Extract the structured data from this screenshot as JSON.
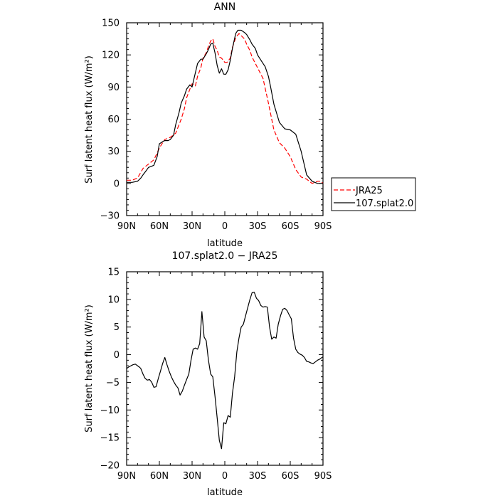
{
  "chart_data": [
    {
      "type": "line",
      "title": "ANN",
      "xlabel": "latitude",
      "ylabel": "Surf latent heat flux (W/m²)",
      "xlim": [
        -90,
        90
      ],
      "ylim": [
        -30,
        150
      ],
      "x_tick_values": [
        -90,
        -60,
        -30,
        0,
        30,
        60,
        90
      ],
      "x_tick_labels": [
        "90N",
        "60N",
        "30N",
        "0",
        "30S",
        "60S",
        "90S"
      ],
      "y_tick_values": [
        -30,
        0,
        30,
        60,
        90,
        120,
        150
      ],
      "y_tick_labels": [
        "−30",
        "0",
        "30",
        "60",
        "90",
        "120",
        "150"
      ],
      "legend_position": "right",
      "series": [
        {
          "name": "JRA25",
          "color": "#ff0000",
          "dash": "dashed",
          "x": [
            -90,
            -85,
            -80,
            -75,
            -70,
            -65,
            -60,
            -57,
            -55,
            -50,
            -45,
            -40,
            -37,
            -35,
            -32,
            -30,
            -27,
            -25,
            -22,
            -20,
            -17,
            -15,
            -13,
            -11,
            -9,
            -7,
            -5,
            -3,
            0,
            2,
            5,
            7,
            10,
            13,
            15,
            18,
            20,
            23,
            25,
            30,
            35,
            40,
            45,
            50,
            55,
            60,
            65,
            70,
            75,
            80,
            85,
            88,
            90
          ],
          "y": [
            3,
            3,
            5,
            14,
            18,
            22,
            33,
            38,
            41,
            43,
            47,
            60,
            70,
            80,
            88,
            93,
            91,
            100,
            108,
            117,
            122,
            128,
            133,
            135,
            128,
            124,
            118,
            117,
            113,
            113,
            117,
            127,
            136,
            140,
            138,
            135,
            130,
            124,
            118,
            108,
            98,
            75,
            50,
            38,
            33,
            25,
            13,
            6,
            4,
            0,
            2,
            2,
            0
          ]
        },
        {
          "name": "107.splat2.0",
          "color": "#000000",
          "dash": "solid",
          "x": [
            -90,
            -85,
            -80,
            -77,
            -75,
            -72,
            -70,
            -67,
            -65,
            -62,
            -60,
            -57,
            -55,
            -52,
            -50,
            -47,
            -45,
            -42,
            -40,
            -37,
            -35,
            -32,
            -30,
            -28,
            -25,
            -22,
            -20,
            -17,
            -15,
            -13,
            -11,
            -9,
            -7,
            -5,
            -3,
            -1,
            1,
            3,
            5,
            7,
            10,
            12,
            15,
            18,
            20,
            23,
            25,
            28,
            30,
            35,
            37,
            40,
            42,
            45,
            50,
            55,
            60,
            65,
            70,
            75,
            80,
            85,
            88,
            90
          ],
          "y": [
            1,
            1,
            2,
            5,
            8,
            12,
            15,
            16,
            17,
            25,
            37,
            39,
            40,
            40,
            41,
            45,
            55,
            66,
            75,
            82,
            88,
            92,
            90,
            99,
            112,
            116,
            116,
            121,
            125,
            130,
            131,
            122,
            110,
            103,
            107,
            102,
            102,
            106,
            115,
            126,
            140,
            143,
            143,
            141,
            139,
            134,
            130,
            126,
            120,
            112,
            109,
            100,
            90,
            74,
            57,
            51,
            50,
            46,
            30,
            8,
            2,
            0,
            0,
            0
          ]
        }
      ]
    },
    {
      "type": "line",
      "title": "107.splat2.0 − JRA25",
      "xlabel": "latitude",
      "ylabel": "Surf latent heat flux (W/m²)",
      "xlim": [
        -90,
        90
      ],
      "ylim": [
        -20,
        15
      ],
      "x_tick_values": [
        -90,
        -60,
        -30,
        0,
        30,
        60,
        90
      ],
      "x_tick_labels": [
        "90N",
        "60N",
        "30N",
        "0",
        "30S",
        "60S",
        "90S"
      ],
      "y_tick_values": [
        -20,
        -15,
        -10,
        -5,
        0,
        5,
        10,
        15
      ],
      "y_tick_labels": [
        "−20",
        "−15",
        "−10",
        "−5",
        "0",
        "5",
        "10",
        "15"
      ],
      "series": [
        {
          "color": "#000000",
          "dash": "solid",
          "x": [
            -90,
            -88,
            -86,
            -84,
            -82,
            -80,
            -78,
            -77,
            -75,
            -73,
            -71,
            -69,
            -67,
            -65,
            -63,
            -61,
            -59,
            -57,
            -55,
            -53,
            -51,
            -49,
            -47,
            -45,
            -43,
            -41,
            -39,
            -37,
            -35,
            -33,
            -31,
            -29,
            -27,
            -25,
            -23,
            -21,
            -19,
            -17,
            -15,
            -13,
            -11,
            -9,
            -7,
            -5,
            -3,
            -1,
            1,
            3,
            5,
            7,
            9,
            11,
            13,
            15,
            17,
            19,
            21,
            23,
            25,
            27,
            29,
            31,
            33,
            35,
            37,
            39,
            41,
            43,
            45,
            47,
            49,
            51,
            53,
            55,
            57,
            59,
            61,
            63,
            65,
            67,
            69,
            71,
            73,
            75,
            77,
            79,
            81,
            83,
            85,
            87,
            89,
            90
          ],
          "y": [
            -2.5,
            -2.2,
            -2.0,
            -1.8,
            -1.7,
            -2.0,
            -2.3,
            -2.5,
            -3.5,
            -4.3,
            -4.6,
            -4.5,
            -5.0,
            -5.9,
            -5.8,
            -4.3,
            -3.0,
            -1.6,
            -0.5,
            -1.8,
            -3.0,
            -4.0,
            -4.8,
            -5.5,
            -6.0,
            -7.3,
            -6.6,
            -5.5,
            -4.5,
            -3.5,
            -1.0,
            1.0,
            1.2,
            1.0,
            2.0,
            7.8,
            3.2,
            2.5,
            -1.0,
            -3.5,
            -4.0,
            -7.5,
            -11.5,
            -15.5,
            -17.0,
            -12.3,
            -12.5,
            -11.0,
            -11.3,
            -7.0,
            -4.0,
            0.5,
            3.0,
            5.0,
            5.5,
            7.0,
            8.5,
            10.0,
            11.2,
            11.3,
            10.2,
            9.8,
            8.9,
            8.6,
            8.7,
            8.6,
            5.0,
            2.8,
            3.2,
            3.0,
            5.5,
            7.0,
            8.2,
            8.4,
            8.0,
            7.2,
            6.5,
            3.0,
            1.0,
            0.4,
            0.1,
            -0.1,
            -0.5,
            -1.2,
            -1.3,
            -1.5,
            -1.6,
            -1.3,
            -1.0,
            -0.8,
            -0.5,
            -0.4
          ]
        }
      ]
    }
  ]
}
